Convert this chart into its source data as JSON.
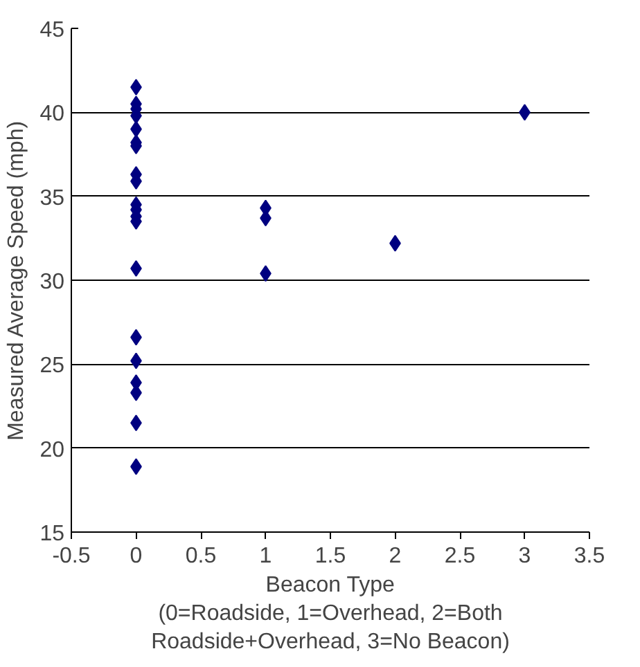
{
  "chart_data": {
    "type": "scatter",
    "xlabel": "Beacon Type\n(0=Roadside, 1=Overhead, 2=Both\nRoadside+Overhead, 3=No Beacon)",
    "ylabel": "Measured Average Speed (mph)",
    "x": [
      0,
      0,
      0,
      0,
      0,
      0,
      0,
      0,
      0,
      0,
      0,
      0,
      0,
      0,
      0,
      0,
      0,
      0,
      0,
      0,
      1,
      1,
      1,
      2,
      3
    ],
    "series": [
      {
        "color": "#000080",
        "values": [
          41.5,
          40.5,
          40.2,
          39.8,
          39.0,
          38.2,
          38.0,
          36.3,
          35.9,
          34.5,
          34.2,
          33.8,
          33.5,
          30.7,
          26.6,
          25.2,
          23.9,
          23.3,
          21.5,
          18.9,
          34.3,
          33.7,
          30.4,
          32.2,
          40.0
        ]
      }
    ],
    "xlim": [
      -0.5,
      3.5
    ],
    "ylim": [
      15,
      45
    ],
    "xticks": [
      -0.5,
      0,
      0.5,
      1,
      1.5,
      2,
      2.5,
      3,
      3.5
    ],
    "yticks": [
      15,
      20,
      25,
      30,
      35,
      40,
      45
    ],
    "grid": "y",
    "marker": "diamond"
  }
}
